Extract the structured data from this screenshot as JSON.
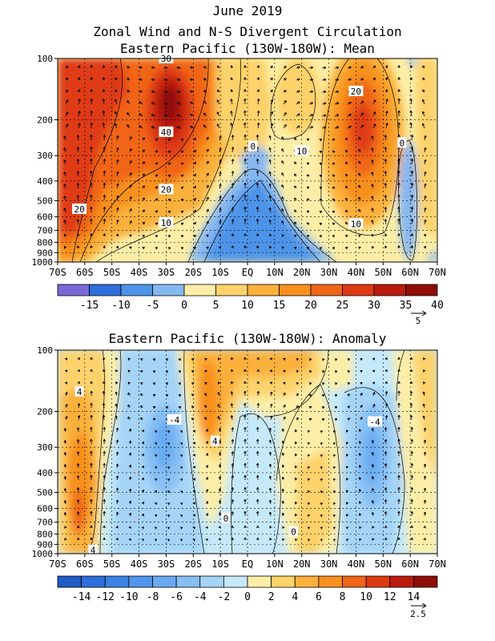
{
  "header": {
    "title_line1": "June 2019",
    "title_line2": "Zonal Wind and N-S Divergent Circulation"
  },
  "chart_data": [
    {
      "type": "heatmap",
      "title": "Eastern Pacific (130W-180W): Mean",
      "x_ticks": [
        "70S",
        "60S",
        "50S",
        "40S",
        "30S",
        "20S",
        "10S",
        "EQ",
        "10N",
        "20N",
        "30N",
        "40N",
        "50N",
        "60N",
        "70N"
      ],
      "x_values": [
        -70,
        -60,
        -50,
        -40,
        -30,
        -20,
        -10,
        0,
        10,
        20,
        30,
        40,
        50,
        60,
        70
      ],
      "y_ticks": [
        "100",
        "200",
        "300",
        "400",
        "500",
        "600",
        "700",
        "800",
        "900",
        "1000"
      ],
      "y_values": [
        100,
        200,
        300,
        400,
        500,
        600,
        700,
        800,
        900,
        1000
      ],
      "xlim": [
        -70,
        70
      ],
      "ylim": [
        1000,
        100
      ],
      "y_scale": "log",
      "contour_labels": [
        {
          "text": "30",
          "lat": -30,
          "p": 100
        },
        {
          "text": "40",
          "lat": -30,
          "p": 230
        },
        {
          "text": "20",
          "lat": -30,
          "p": 440
        },
        {
          "text": "10",
          "lat": -30,
          "p": 640
        },
        {
          "text": "20",
          "lat": -62,
          "p": 550
        },
        {
          "text": "0",
          "lat": 2,
          "p": 270
        },
        {
          "text": "10",
          "lat": 20,
          "p": 285
        },
        {
          "text": "20",
          "lat": 40,
          "p": 145
        },
        {
          "text": "10",
          "lat": 40,
          "p": 650
        },
        {
          "text": "0",
          "lat": 57,
          "p": 260
        }
      ],
      "colorbar": {
        "labels": [
          "-15",
          "-10",
          "-5",
          "0",
          "5",
          "10",
          "15",
          "20",
          "25",
          "30",
          "35",
          "40"
        ],
        "colors": [
          "#7b68d8",
          "#2f6fdb",
          "#4e94e8",
          "#86b8f2",
          "#fdeea7",
          "#fdd26a",
          "#fbb03b",
          "#f8901f",
          "#f06518",
          "#de3a12",
          "#bb1a0c",
          "#8f0c07"
        ],
        "vector_ref": "5"
      }
    },
    {
      "type": "heatmap",
      "title": "Eastern Pacific (130W-180W): Anomaly",
      "x_ticks": [
        "70S",
        "60S",
        "50S",
        "40S",
        "30S",
        "20S",
        "10S",
        "EQ",
        "10N",
        "20N",
        "30N",
        "40N",
        "50N",
        "60N",
        "70N"
      ],
      "x_values": [
        -70,
        -60,
        -50,
        -40,
        -30,
        -20,
        -10,
        0,
        10,
        20,
        30,
        40,
        50,
        60,
        70
      ],
      "y_ticks": [
        "100",
        "200",
        "300",
        "400",
        "500",
        "600",
        "700",
        "800",
        "900",
        "1000"
      ],
      "y_values": [
        100,
        200,
        300,
        400,
        500,
        600,
        700,
        800,
        900,
        1000
      ],
      "xlim": [
        -70,
        70
      ],
      "ylim": [
        1000,
        100
      ],
      "y_scale": "log",
      "contour_labels": [
        {
          "text": "4",
          "lat": -62,
          "p": 160
        },
        {
          "text": "-4",
          "lat": -27,
          "p": 220
        },
        {
          "text": "4",
          "lat": -12,
          "p": 280
        },
        {
          "text": "0",
          "lat": -8,
          "p": 670
        },
        {
          "text": "0",
          "lat": 17,
          "p": 780
        },
        {
          "text": "-4",
          "lat": 47,
          "p": 225
        },
        {
          "text": "4",
          "lat": -57,
          "p": 960
        }
      ],
      "colorbar": {
        "labels": [
          "-14",
          "-12",
          "-10",
          "-8",
          "-6",
          "-4",
          "-2",
          "0",
          "2",
          "4",
          "6",
          "8",
          "10",
          "12",
          "14"
        ],
        "colors": [
          "#1f5cc4",
          "#2f6fdb",
          "#3c82e4",
          "#5096ec",
          "#69aaf1",
          "#86bff4",
          "#a5d4f7",
          "#c6e9f9",
          "#fdeea7",
          "#fdd26a",
          "#fbb03b",
          "#f8901f",
          "#f06518",
          "#de3a12",
          "#bb1a0c",
          "#8f0c07"
        ],
        "vector_ref": "2.5"
      }
    }
  ]
}
